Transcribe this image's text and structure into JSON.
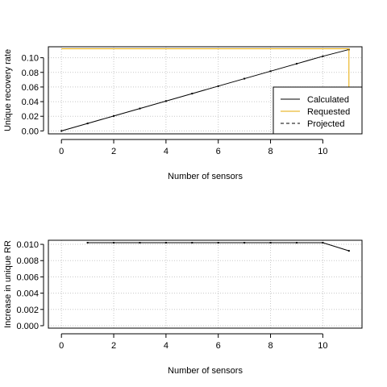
{
  "colors": {
    "calculated": "#000000",
    "requested": "#E6A800",
    "projected": "#000000",
    "grid": "#c8c8c8"
  },
  "chart_data": [
    {
      "type": "line",
      "xlabel": "Number of sensors",
      "ylabel": "Unique recovery rate",
      "xlim": [
        -0.5,
        11.5
      ],
      "ylim": [
        -0.004,
        0.115
      ],
      "xticks": [
        0,
        2,
        4,
        6,
        8,
        10
      ],
      "yticks": [
        0.0,
        0.02,
        0.04,
        0.06,
        0.08,
        0.1
      ],
      "ytick_labels": [
        "0.00",
        "0.02",
        "0.04",
        "0.06",
        "0.08",
        "0.10"
      ],
      "grid": true,
      "legend_position": "bottom-right",
      "series": [
        {
          "name": "Calculated",
          "style": "solid",
          "x": [
            0,
            1,
            2,
            3,
            4,
            5,
            6,
            7,
            8,
            9,
            10,
            11
          ],
          "y": [
            0.0,
            0.0102,
            0.0204,
            0.0306,
            0.0408,
            0.051,
            0.0612,
            0.0714,
            0.0816,
            0.0918,
            0.102,
            0.1112
          ],
          "markers": true
        },
        {
          "name": "Requested",
          "style": "solid",
          "x": [
            0,
            11,
            11
          ],
          "y": [
            0.1122,
            0.1122,
            0.06
          ]
        },
        {
          "name": "Projected",
          "style": "dashed",
          "x": [],
          "y": []
        }
      ]
    },
    {
      "type": "line",
      "xlabel": "Number of sensors",
      "ylabel": "Increase in unique RR",
      "xlim": [
        -0.5,
        11.5
      ],
      "ylim": [
        -0.0003,
        0.0105
      ],
      "xticks": [
        0,
        2,
        4,
        6,
        8,
        10
      ],
      "yticks": [
        0.0,
        0.002,
        0.004,
        0.006,
        0.008,
        0.01
      ],
      "ytick_labels": [
        "0.000",
        "0.002",
        "0.004",
        "0.006",
        "0.008",
        "0.010"
      ],
      "grid": true,
      "series": [
        {
          "style": "solid",
          "x": [
            1,
            2,
            3,
            4,
            5,
            6,
            7,
            8,
            9,
            10,
            11
          ],
          "y": [
            0.0102,
            0.0102,
            0.0102,
            0.0102,
            0.0102,
            0.0102,
            0.0102,
            0.0102,
            0.0102,
            0.0102,
            0.0092
          ],
          "markers": true
        }
      ]
    }
  ]
}
